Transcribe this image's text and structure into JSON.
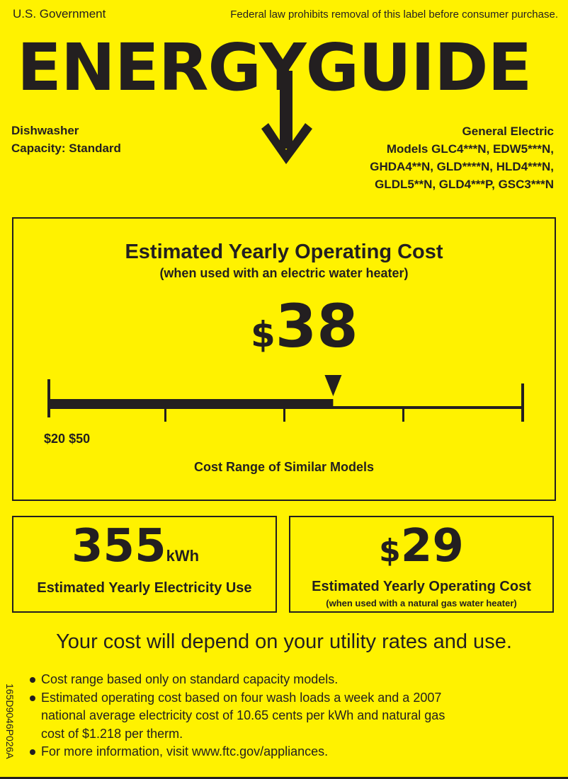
{
  "header": {
    "left": "U.S. Government",
    "right": "Federal law prohibits removal of this label before consumer purchase.",
    "logo": "ENERGYGUIDE"
  },
  "product": {
    "type": "Dishwasher",
    "capacity": "Capacity: Standard"
  },
  "manufacturer": {
    "name": "General Electric",
    "models": [
      "Models GLC4***N, EDW5***N,",
      "GHDA4**N, GLD****N, HLD4***N,",
      "GLDL5**N, GLD4***P, GSC3***N"
    ]
  },
  "main": {
    "title": "Estimated Yearly Operating Cost",
    "subtitle": "(when used with an electric water heater)",
    "currency": "$",
    "cost": "38",
    "cost_value": 38,
    "range_min": 20,
    "range_max": 50,
    "range_min_label": "$20",
    "range_max_label": "$50",
    "range_caption": "Cost Range of Similar Models"
  },
  "electricity": {
    "value": "355",
    "unit": "kWh",
    "label": "Estimated Yearly Electricity Use"
  },
  "gas": {
    "currency": "$",
    "value": "29",
    "label": "Estimated Yearly Operating Cost",
    "sublabel": "(when used with a natural gas water heater)"
  },
  "note": "Your cost will depend on your utility rates and use.",
  "bullets": [
    "Cost range based only on standard capacity models.",
    "Estimated operating cost based on four wash loads a week and a 2007",
    "national average electricity cost of 10.65 cents per kWh and natural gas",
    "cost of $1.218 per therm.",
    "For more information, visit www.ftc.gov/appliances."
  ],
  "code": "165D9046P026A",
  "colors": {
    "background": "#fff200",
    "ink": "#231f20"
  }
}
